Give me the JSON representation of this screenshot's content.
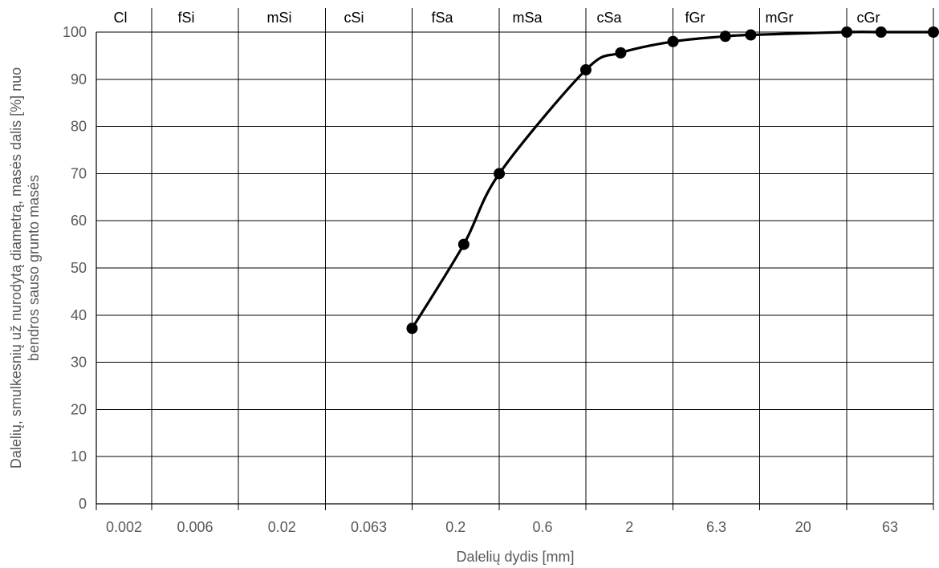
{
  "chart_data": {
    "type": "line",
    "title": "",
    "xlabel": "Dalelių dydis [mm]",
    "ylabel_lines": [
      "Dalelių, smulkesnių už nurodytą diametrą, masės dalis [%] nuo",
      "bendros sauso grunto masės"
    ],
    "ylim": [
      0,
      100
    ],
    "y_ticks": [
      0,
      10,
      20,
      30,
      40,
      50,
      60,
      70,
      80,
      90,
      100
    ],
    "x_ticks": [
      {
        "label": "0.002",
        "value": 0.002
      },
      {
        "label": "0.006",
        "value": 0.0063
      },
      {
        "label": "0.02",
        "value": 0.02
      },
      {
        "label": "0.063",
        "value": 0.063
      },
      {
        "label": "0.2",
        "value": 0.2
      },
      {
        "label": "0.6",
        "value": 0.63
      },
      {
        "label": "2",
        "value": 2
      },
      {
        "label": "6.3",
        "value": 6.3
      },
      {
        "label": "20",
        "value": 20
      },
      {
        "label": "63",
        "value": 63
      }
    ],
    "x_scale": "log",
    "grid": true,
    "soil_classes": [
      "Cl",
      "fSi",
      "mSi",
      "cSi",
      "fSa",
      "mSa",
      "cSa",
      "fGr",
      "mGr",
      "cGr"
    ],
    "series": [
      {
        "color": "#000000",
        "points": [
          {
            "x": 0.063,
            "y": 37.2
          },
          {
            "x": 0.125,
            "y": 55
          },
          {
            "x": 0.2,
            "y": 70
          },
          {
            "x": 0.63,
            "y": 92
          },
          {
            "x": 1,
            "y": 95.6
          },
          {
            "x": 2,
            "y": 98
          },
          {
            "x": 4,
            "y": 99.1
          },
          {
            "x": 5.6,
            "y": 99.4
          },
          {
            "x": 20,
            "y": 100
          },
          {
            "x": 31.5,
            "y": 100
          },
          {
            "x": 63,
            "y": 100
          }
        ]
      }
    ]
  }
}
